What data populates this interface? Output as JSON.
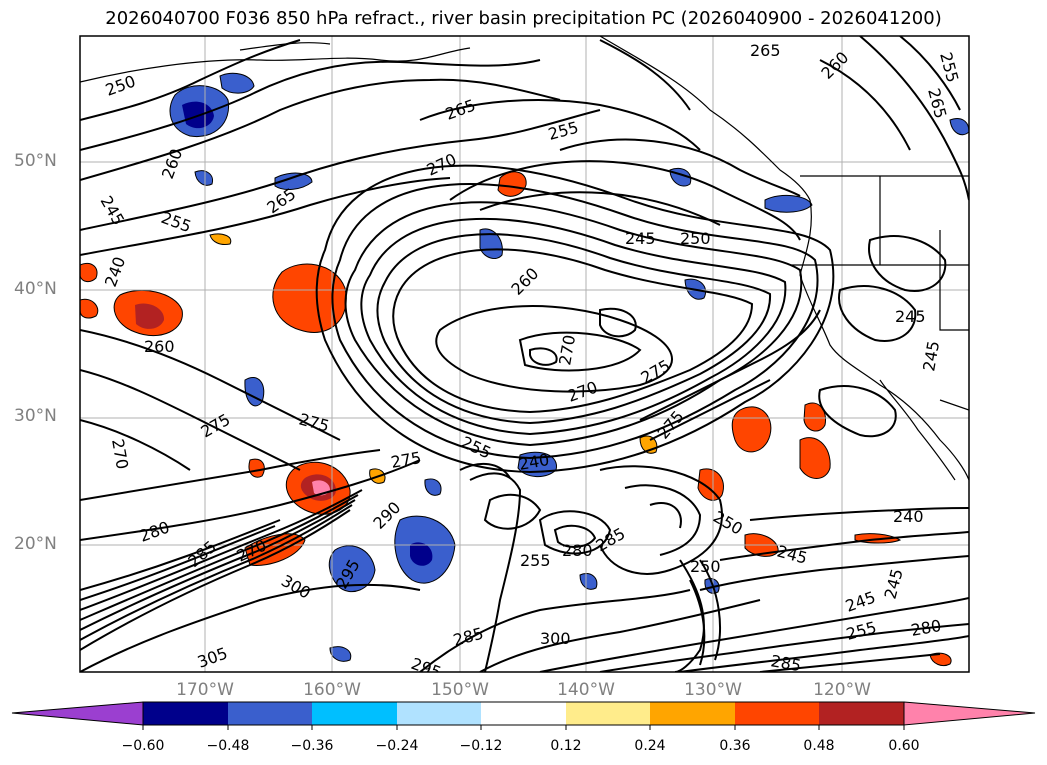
{
  "title": "2026040700 F036 850 hPa refract., river basin precipitation PC (2026040900 - 2026041200)",
  "map": {
    "lat_labels": [
      "50°N",
      "40°N",
      "30°N",
      "20°N"
    ],
    "lon_labels": [
      "170°W",
      "160°W",
      "150°W",
      "140°W",
      "130°W",
      "120°W"
    ],
    "contour_labels": [
      "250",
      "255",
      "260",
      "265",
      "270",
      "275",
      "280",
      "285",
      "290",
      "295",
      "300",
      "305",
      "245",
      "240"
    ]
  },
  "colorbar": {
    "ticks": [
      "−0.60",
      "−0.48",
      "−0.36",
      "−0.24",
      "−0.12",
      "0.12",
      "0.24",
      "0.36",
      "0.48",
      "0.60"
    ],
    "colors": [
      "#9b3fd0",
      "#00008b",
      "#3a5fcd",
      "#00bfff",
      "#b0e2ff",
      "#ffffff",
      "#ffec8b",
      "#ffa500",
      "#ff4500",
      "#b22222",
      "#ff82ab"
    ]
  },
  "colors": {
    "frame": "#000000",
    "grid": "#b0b0b0",
    "label": "#808080"
  }
}
